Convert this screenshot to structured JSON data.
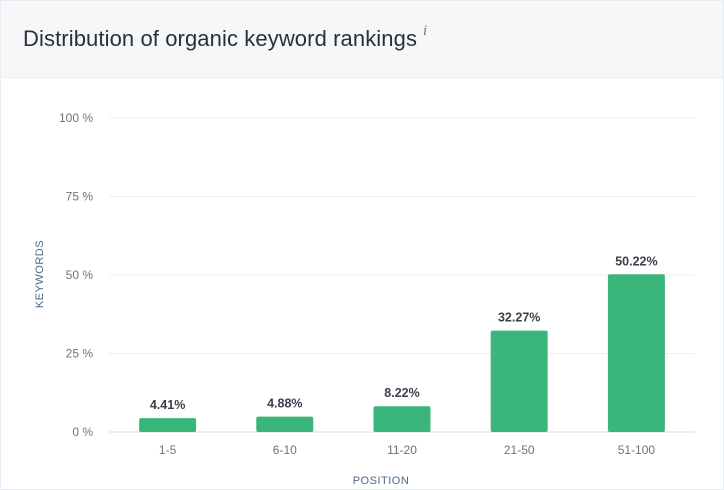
{
  "header": {
    "title": "Distribution of organic keyword rankings",
    "info_icon": "i"
  },
  "chart_data": {
    "type": "bar",
    "title": "Distribution of organic keyword rankings",
    "xlabel": "POSITION",
    "ylabel": "KEYWORDS",
    "categories": [
      "1-5",
      "6-10",
      "11-20",
      "21-50",
      "51-100"
    ],
    "values": [
      4.41,
      4.88,
      8.22,
      32.27,
      50.22
    ],
    "value_labels": [
      "4.41%",
      "4.88%",
      "8.22%",
      "32.27%",
      "50.22%"
    ],
    "ylim": [
      0,
      100
    ],
    "yticks": [
      0,
      25,
      50,
      75,
      100
    ],
    "ytick_labels": [
      "0 %",
      "25 %",
      "50 %",
      "75 %",
      "100 %"
    ],
    "grid": true,
    "bar_color": "#3ab57c"
  }
}
